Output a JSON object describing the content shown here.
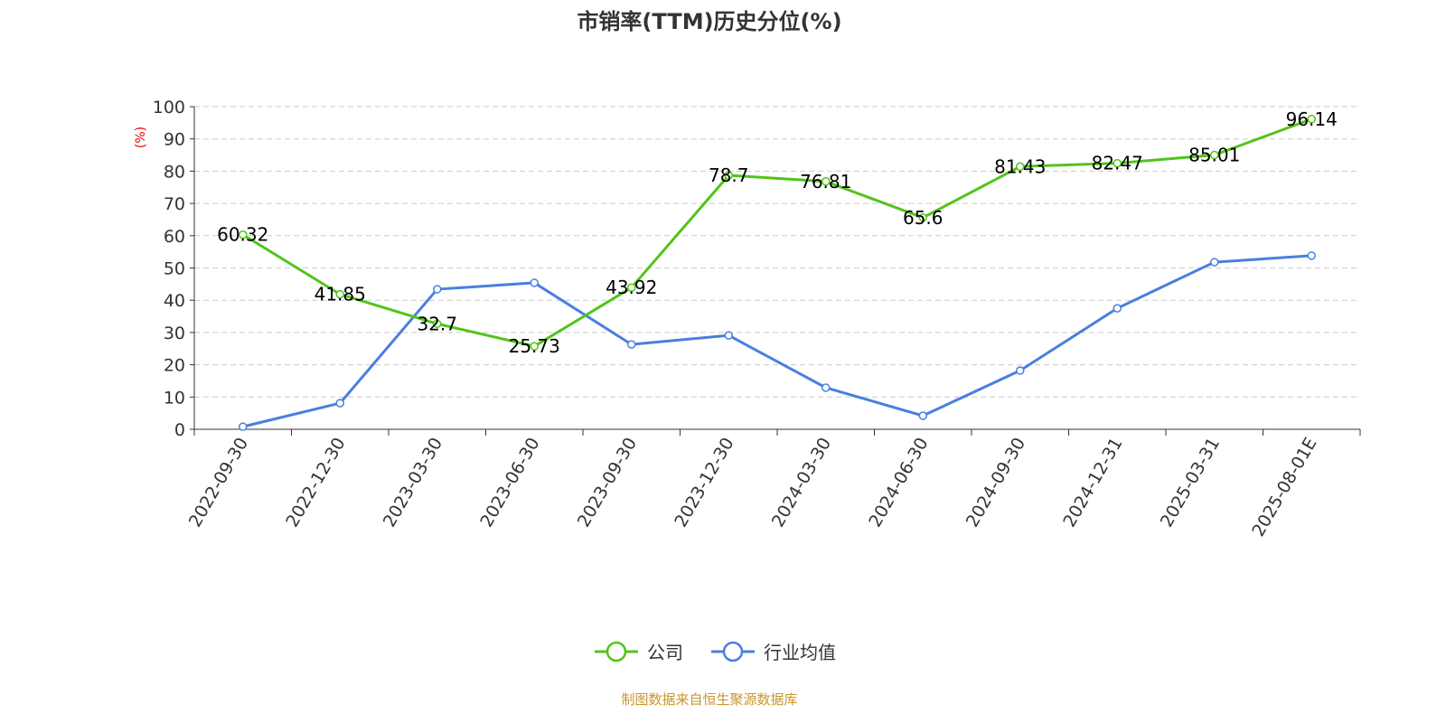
{
  "chart_data": {
    "type": "line",
    "title": "市销率(TTM)历史分位(%)",
    "ylabel": "(%)",
    "xlabel": "",
    "ylim": [
      0,
      100
    ],
    "yticks": [
      0,
      10,
      20,
      30,
      40,
      50,
      60,
      70,
      80,
      90,
      100
    ],
    "grid": true,
    "legend_position": "bottom",
    "categories": [
      "2022-09-30",
      "2022-12-30",
      "2023-03-30",
      "2023-06-30",
      "2023-09-30",
      "2023-12-30",
      "2024-03-30",
      "2024-06-30",
      "2024-09-30",
      "2024-12-31",
      "2025-03-31",
      "2025-08-01E"
    ],
    "series": [
      {
        "name": "公司",
        "color": "#52c41a",
        "show_labels": true,
        "values": [
          60.32,
          41.85,
          32.7,
          25.73,
          43.92,
          78.7,
          76.81,
          65.6,
          81.43,
          82.47,
          85.01,
          96.14
        ]
      },
      {
        "name": "行业均值",
        "color": "#4a7fe0",
        "show_labels": false,
        "values": [
          0.8,
          8.1,
          43.4,
          45.4,
          26.3,
          29.1,
          12.9,
          4.2,
          18.2,
          37.5,
          51.8,
          53.8
        ]
      }
    ],
    "source": "制图数据来自恒生聚源数据库"
  }
}
